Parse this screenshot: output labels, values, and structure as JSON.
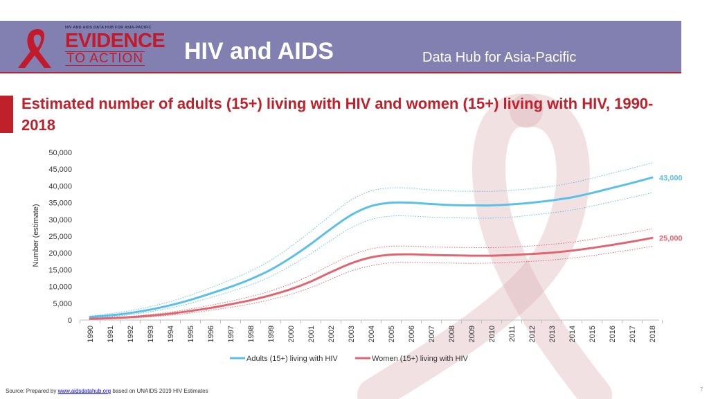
{
  "header": {
    "logo_small": "HIV AND AIDS DATA HUB FOR ASIA-PACIFIC",
    "logo_line1": "EVIDENCE",
    "logo_line2": "TO ACTION",
    "title": "HIV and AIDS",
    "subtitle": "Data Hub for Asia-Pacific"
  },
  "colors": {
    "brand_red": "#c0202a",
    "header_bg": "#8280b0",
    "adults": "#5bc0e8",
    "women": "#e06570"
  },
  "icons": [
    "red-ribbon-icon"
  ],
  "footer": {
    "source_prefix": "Source: Prepared by ",
    "source_link": "www.aidsdatahub.org",
    "source_suffix": " based on UNAIDS 2019 HIV Estimates",
    "page_number": "7"
  },
  "chart_data": {
    "type": "line",
    "title": "Estimated number of adults (15+) living with HIV and women (15+) living with HIV, 1990-2018",
    "ylabel": "Number (estimate)",
    "xlabel": "",
    "ylim": [
      0,
      50000
    ],
    "yticks": [
      "0",
      "5,000",
      "10,000",
      "15,000",
      "20,000",
      "25,000",
      "30,000",
      "35,000",
      "40,000",
      "45,000",
      "50,000"
    ],
    "grid": false,
    "legend_position": "bottom",
    "x": [
      "1990",
      "1991",
      "1992",
      "1993",
      "1994",
      "1995",
      "1996",
      "1997",
      "1998",
      "1999",
      "2000",
      "2001",
      "2002",
      "2003",
      "2004",
      "2005",
      "2006",
      "2007",
      "2008",
      "2009",
      "2010",
      "2011",
      "2012",
      "2013",
      "2014",
      "2015",
      "2016",
      "2017",
      "2018"
    ],
    "series": [
      {
        "name": "Adults (15+) living with HIV",
        "color": "#5bc0e8",
        "values": [
          900,
          1400,
          2100,
          3100,
          4400,
          6000,
          7900,
          9900,
          12200,
          15000,
          18600,
          22700,
          27200,
          31300,
          34000,
          35000,
          35000,
          34600,
          34300,
          34200,
          34200,
          34500,
          35000,
          35700,
          36600,
          37900,
          39400,
          40900,
          42500
        ],
        "lower": [
          600,
          1000,
          1600,
          2500,
          3600,
          5000,
          6700,
          8500,
          10500,
          13000,
          16200,
          19800,
          23800,
          27500,
          30000,
          31000,
          31000,
          30700,
          30500,
          30400,
          30400,
          30700,
          31300,
          32000,
          32800,
          34000,
          35300,
          36600,
          38000
        ],
        "upper": [
          1200,
          1900,
          2800,
          4000,
          5500,
          7400,
          9600,
          12000,
          14600,
          17800,
          21900,
          26500,
          31300,
          35800,
          38500,
          39400,
          39300,
          38800,
          38500,
          38400,
          38400,
          38700,
          39200,
          39900,
          40900,
          42300,
          43800,
          45300,
          46900
        ],
        "end_label": "43,000"
      },
      {
        "name": "Women (15+) living with HIV",
        "color": "#e06570",
        "values": [
          350,
          550,
          850,
          1300,
          1900,
          2700,
          3600,
          4700,
          5900,
          7400,
          9200,
          11500,
          14300,
          16900,
          18700,
          19500,
          19600,
          19400,
          19300,
          19200,
          19200,
          19400,
          19700,
          20100,
          20700,
          21500,
          22400,
          23400,
          24500
        ],
        "lower": [
          200,
          350,
          600,
          950,
          1450,
          2100,
          2900,
          3800,
          4800,
          6100,
          7700,
          9700,
          12200,
          14600,
          16200,
          17100,
          17200,
          17100,
          17000,
          16900,
          17000,
          17200,
          17500,
          17900,
          18500,
          19200,
          20100,
          21000,
          22000
        ],
        "upper": [
          500,
          750,
          1100,
          1650,
          2350,
          3300,
          4400,
          5600,
          7000,
          8700,
          10800,
          13400,
          16500,
          19300,
          21200,
          22000,
          22000,
          21800,
          21700,
          21600,
          21600,
          21800,
          22100,
          22600,
          23200,
          24100,
          25100,
          26100,
          27200
        ],
        "end_label": "25,000"
      }
    ]
  }
}
